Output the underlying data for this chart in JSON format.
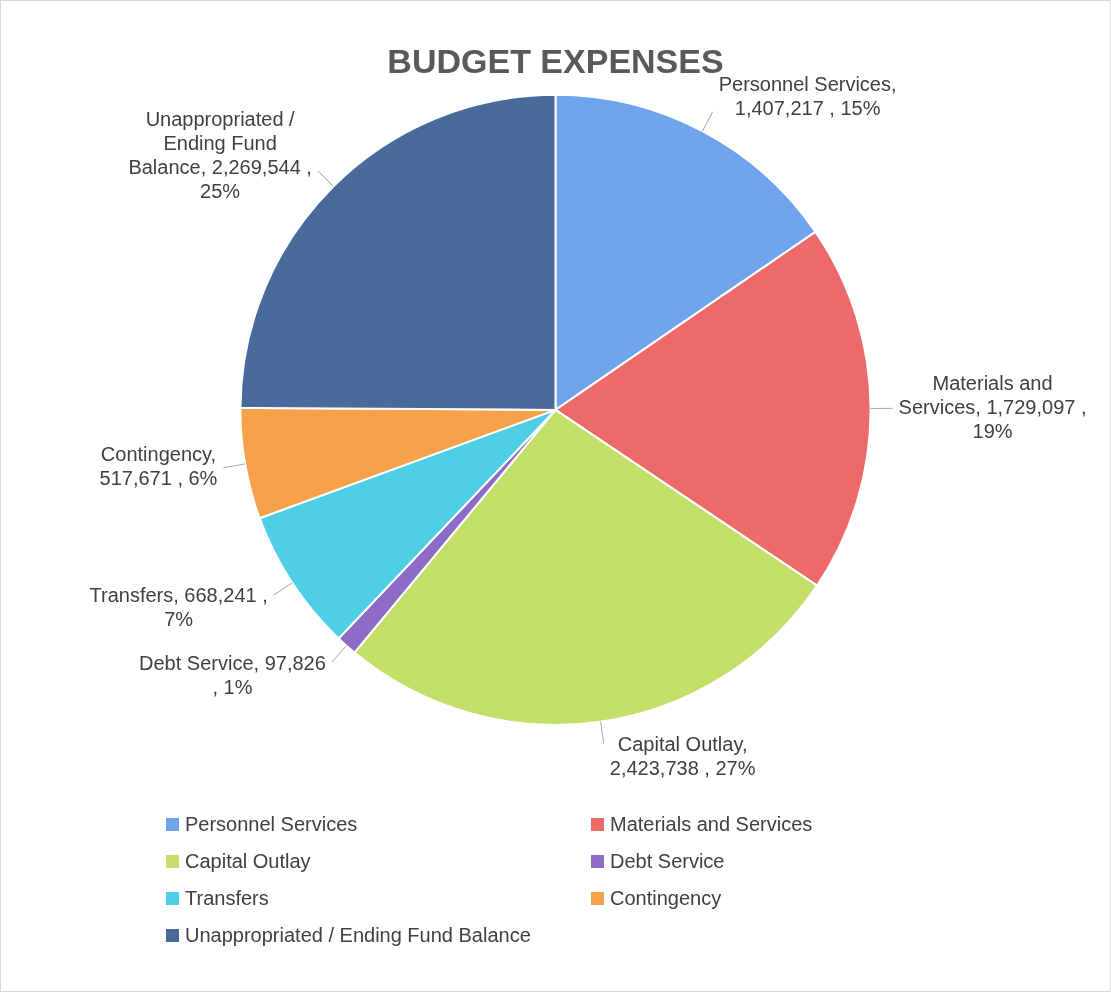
{
  "chart_data": {
    "type": "pie",
    "title": "BUDGET EXPENSES",
    "categories": [
      "Personnel Services",
      "Materials and Services",
      "Capital Outlay",
      "Debt Service",
      "Transfers",
      "Contingency",
      "Unappropriated / Ending Fund Balance"
    ],
    "values": [
      1407217,
      1729097,
      2423738,
      97826,
      668241,
      517671,
      2269544
    ],
    "colors": [
      "#6fa3ec",
      "#ec6a6a",
      "#c3df6a",
      "#8c6cc6",
      "#4fcfe6",
      "#f5a24a",
      "#4a6a9c"
    ],
    "value_labels": [
      "Personnel Services, 1,407,217 , 15%",
      "Materials and Services, 1,729,097 , 19%",
      "Capital Outlay, 2,423,738 , 27%",
      "Debt Service, 97,826 , 1%",
      "Transfers, 668,241 , 7%",
      "Contingency, 517,671 , 6%",
      "Unappropriated / Ending Fund Balance, 2,269,544 , 25%"
    ],
    "legend": "bottom"
  }
}
